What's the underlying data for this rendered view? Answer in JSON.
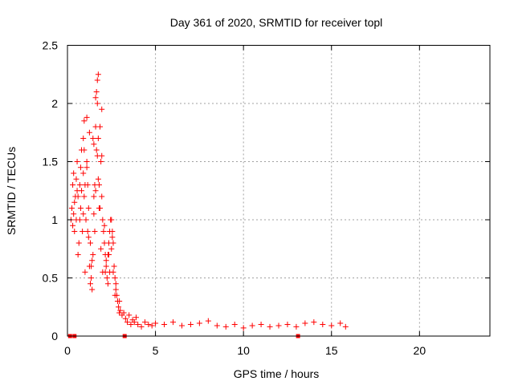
{
  "chart_data": {
    "type": "scatter",
    "title": "Day 361 of 2020, SRMTID for receiver topl",
    "xlabel": "GPS time / hours",
    "ylabel": "SRMTID / TECUs",
    "xlim": [
      0,
      24
    ],
    "ylim": [
      0,
      2.5
    ],
    "xticks": [
      "0",
      "5",
      "10",
      "15",
      "20"
    ],
    "yticks": [
      "0",
      "0.5",
      "1",
      "1.5",
      "2",
      "2.5"
    ],
    "grid": true,
    "marker": "+",
    "series_color": "#ff0000",
    "series": [
      {
        "name": "SRMTID",
        "x": [
          0.2,
          0.25,
          0.3,
          0.35,
          0.4,
          0.45,
          0.5,
          0.55,
          0.6,
          0.65,
          0.7,
          0.75,
          0.8,
          0.85,
          0.9,
          0.95,
          1.0,
          1.05,
          1.1,
          1.15,
          1.2,
          1.25,
          1.3,
          1.35,
          1.4,
          1.45,
          1.5,
          1.55,
          1.6,
          1.65,
          1.7,
          1.75,
          1.8,
          1.85,
          1.9,
          1.95,
          2.0,
          2.05,
          2.1,
          2.15,
          2.2,
          2.25,
          2.3,
          2.35,
          2.4,
          2.45,
          2.5,
          2.55,
          2.6,
          2.65,
          2.7,
          2.75,
          2.8,
          2.85,
          2.9,
          2.95,
          3.0,
          3.1,
          3.2,
          3.3,
          3.4,
          3.5,
          3.6,
          3.7,
          3.8,
          3.9,
          4.0,
          4.2,
          4.4,
          4.6,
          4.8,
          5.0,
          5.5,
          6.0,
          6.5,
          7.0,
          7.5,
          8.0,
          8.5,
          9.0,
          9.5,
          10.0,
          10.5,
          11.0,
          11.5,
          12.0,
          12.5,
          13.0,
          13.5,
          14.0,
          14.5,
          15.0,
          15.5,
          15.8,
          0.3,
          0.4,
          0.5,
          0.6,
          0.7,
          0.8,
          0.9,
          1.0,
          1.1,
          1.2,
          1.3,
          1.4,
          1.5,
          1.6,
          1.7,
          1.8,
          1.9,
          2.0,
          2.1,
          2.2,
          2.3,
          2.4,
          2.5,
          2.6,
          2.7,
          0.35,
          0.55,
          0.75,
          0.95,
          1.15,
          1.35,
          1.55,
          1.75,
          1.95,
          2.15,
          2.35,
          2.55,
          2.75,
          2.95,
          1.6,
          1.65,
          1.7,
          1.75,
          1.85,
          1.95,
          0.9,
          0.95,
          1.1,
          1.25,
          1.45,
          1.5
        ],
        "y": [
          1.0,
          1.1,
          1.3,
          1.4,
          0.9,
          1.2,
          1.0,
          1.5,
          1.2,
          0.8,
          1.3,
          1.1,
          1.6,
          0.9,
          1.4,
          1.2,
          1.3,
          1.0,
          1.5,
          0.9,
          1.1,
          0.6,
          0.8,
          0.5,
          0.4,
          0.7,
          1.2,
          1.3,
          1.8,
          1.6,
          2.0,
          1.7,
          1.3,
          1.1,
          1.5,
          1.2,
          1.0,
          0.9,
          0.8,
          0.7,
          0.6,
          0.5,
          0.7,
          0.8,
          0.9,
          1.0,
          1.0,
          0.9,
          0.8,
          0.6,
          0.5,
          0.4,
          0.35,
          0.3,
          0.25,
          0.2,
          0.22,
          0.18,
          0.2,
          0.15,
          0.12,
          0.18,
          0.1,
          0.14,
          0.12,
          0.16,
          0.1,
          0.08,
          0.12,
          0.1,
          0.09,
          0.11,
          0.1,
          0.12,
          0.09,
          0.1,
          0.11,
          0.13,
          0.09,
          0.08,
          0.1,
          0.07,
          0.09,
          0.1,
          0.08,
          0.09,
          0.1,
          0.08,
          0.11,
          0.12,
          0.1,
          0.09,
          0.11,
          0.08,
          0.95,
          1.15,
          1.35,
          0.7,
          1.0,
          1.25,
          1.05,
          0.55,
          1.45,
          0.85,
          0.45,
          0.65,
          1.05,
          1.25,
          1.55,
          1.1,
          0.75,
          0.55,
          0.95,
          0.65,
          0.45,
          0.55,
          0.75,
          0.55,
          0.35,
          1.05,
          1.25,
          1.45,
          1.6,
          1.3,
          0.6,
          0.9,
          1.35,
          1.95,
          0.55,
          0.7,
          0.85,
          0.45,
          0.3,
          2.05,
          2.1,
          2.2,
          2.25,
          1.8,
          1.55,
          1.7,
          1.85,
          1.88,
          1.75,
          1.7,
          1.65
        ]
      }
    ],
    "gap_markers_x": [
      0.15,
      0.4,
      3.25,
      13.1
    ]
  }
}
